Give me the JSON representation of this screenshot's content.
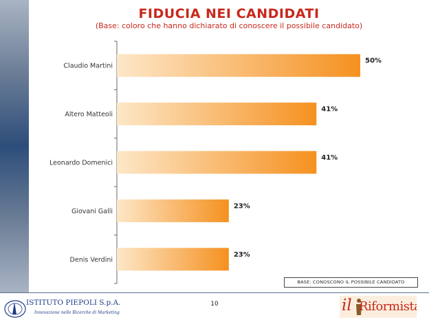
{
  "chart_data": {
    "type": "bar",
    "orientation": "horizontal",
    "title": "FIDUCIA NEI CANDIDATI",
    "subtitle": "(Base: coloro che hanno dichiarato di conoscere il possibile candidato)",
    "categories": [
      "Claudio Martini",
      "Altero Matteoli",
      "Leonardo Domenici",
      "Giovani Galli",
      "Denis Verdini"
    ],
    "values": [
      50,
      41,
      41,
      23,
      23
    ],
    "value_labels": [
      "50%",
      "41%",
      "41%",
      "23%",
      "23%"
    ],
    "xlim": [
      0,
      50
    ],
    "grid": false,
    "legend": "none",
    "bar_color_start": "#fde7c8",
    "bar_color_end": "#f59120"
  },
  "footer": {
    "base_note": "BASE: CONOSCONO IL POSSIBILE CANDIDATO",
    "page_number": "10",
    "logo_left_name": "ISTITUTO PIEPOLI S.p.A.",
    "logo_left_tagline": "Innovazione nelle Ricerche di Marketing",
    "logo_right_il": "il",
    "logo_right_name": "Riformista"
  },
  "colors": {
    "title": "#c8281c",
    "sidebar": "#2d4d7a"
  }
}
